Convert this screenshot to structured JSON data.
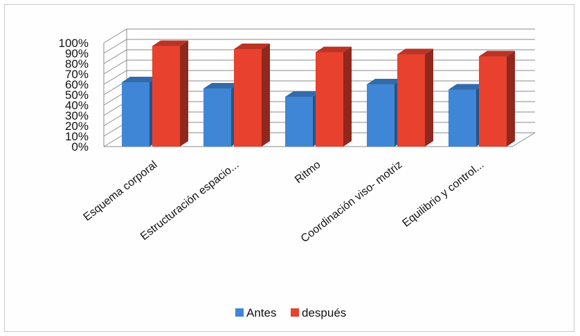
{
  "chart_data": {
    "type": "bar",
    "title": "",
    "xlabel": "",
    "ylabel": "",
    "ylim": [
      0,
      1
    ],
    "yticks": [
      "0%",
      "10%",
      "20%",
      "30%",
      "40%",
      "50%",
      "60%",
      "70%",
      "80%",
      "90%",
      "100%"
    ],
    "grid": true,
    "style": "3d-clustered-column",
    "legend_position": "bottom",
    "categories": [
      "Esquema corporal",
      "Estructuración espacio...",
      "Ritmo",
      "Coordinación viso- motriz",
      "Equilibrio y control..."
    ],
    "series": [
      {
        "name": "Antes",
        "color": "#3f86d6",
        "values": [
          0.62,
          0.56,
          0.48,
          0.6,
          0.55
        ]
      },
      {
        "name": "después",
        "color": "#e8412e",
        "values": [
          0.97,
          0.94,
          0.91,
          0.89,
          0.87
        ]
      }
    ]
  }
}
